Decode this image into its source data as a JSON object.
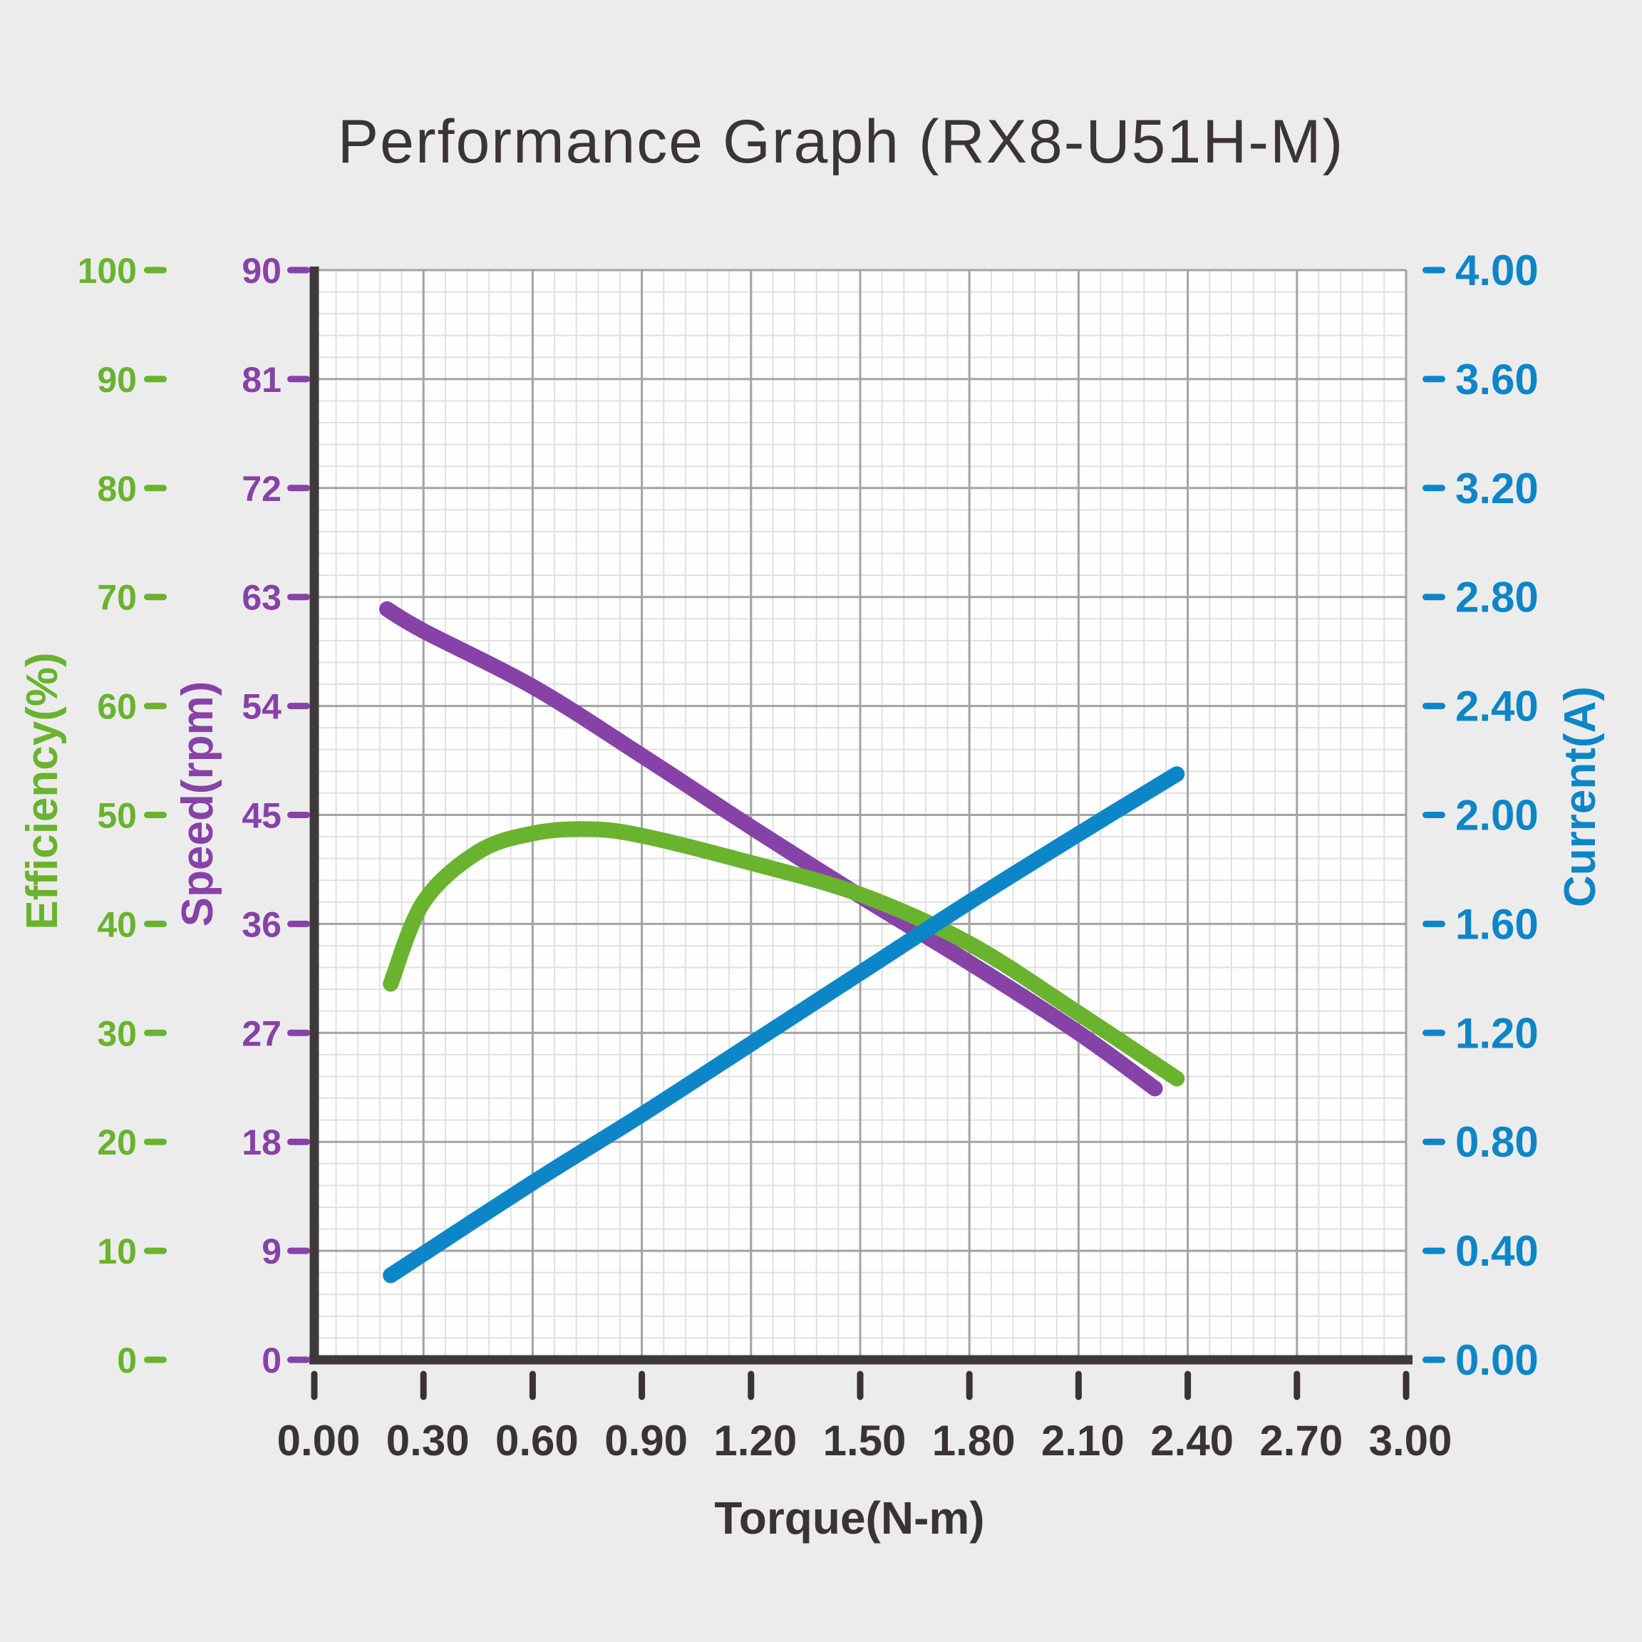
{
  "title": "Performance Graph (RX8-U51H-M)",
  "colors": {
    "background": "#edecec",
    "plot_background": "#fefefe",
    "grid_major": "#a3a3a3",
    "grid_minor": "#e0e0e0",
    "axis_spine": "#3f393b",
    "text_dark": "#3a3335",
    "efficiency_green": "#69b32e",
    "speed_purple": "#8642a7",
    "current_blue": "#0d86c8"
  },
  "axes": {
    "x": {
      "title": "Torque(N-m)",
      "ticks": [
        "0.00",
        "0.30",
        "0.60",
        "0.90",
        "1.20",
        "1.50",
        "1.80",
        "2.10",
        "2.40",
        "2.70",
        "3.00"
      ]
    },
    "efficiency": {
      "title": "Efficiency(%)",
      "ticks": [
        "100",
        "90",
        "80",
        "70",
        "60",
        "50",
        "40",
        "30",
        "20",
        "10",
        "0"
      ]
    },
    "speed": {
      "title": "Speed(rpm)",
      "ticks": [
        "90",
        "81",
        "72",
        "63",
        "54",
        "45",
        "36",
        "27",
        "18",
        "9",
        "0"
      ]
    },
    "current": {
      "title": "Current(A)",
      "ticks": [
        "4.00",
        "3.60",
        "3.20",
        "2.80",
        "2.40",
        "2.00",
        "1.60",
        "1.20",
        "0.80",
        "0.40",
        "0.00"
      ]
    }
  },
  "chart_data": {
    "type": "line",
    "title": "Performance Graph (RX8-U51H-M)",
    "xlabel": "Torque(N-m)",
    "x_range": [
      0.0,
      3.0
    ],
    "x_tick_step": 0.3,
    "grid": true,
    "minor_divisions_per_major": 5,
    "legend_position": "none",
    "series": [
      {
        "name": "Speed",
        "unit": "rpm",
        "axis": "left-outer",
        "color": "#8642a7",
        "ylim": [
          0,
          90
        ],
        "tick_step": 9,
        "points": [
          [
            0.2,
            62.0
          ],
          [
            0.3,
            60.2
          ],
          [
            0.6,
            55.6
          ],
          [
            0.9,
            49.9
          ],
          [
            1.2,
            44.0
          ],
          [
            1.5,
            38.3
          ],
          [
            1.8,
            32.8
          ],
          [
            2.1,
            27.0
          ],
          [
            2.31,
            22.4
          ]
        ]
      },
      {
        "name": "Efficiency",
        "unit": "%",
        "axis": "left-inner",
        "color": "#69b32e",
        "ylim": [
          0,
          100
        ],
        "tick_step": 10,
        "points": [
          [
            0.21,
            34.5
          ],
          [
            0.3,
            42.0
          ],
          [
            0.45,
            46.6
          ],
          [
            0.6,
            48.3
          ],
          [
            0.75,
            48.7
          ],
          [
            0.9,
            48.1
          ],
          [
            1.2,
            45.6
          ],
          [
            1.5,
            42.7
          ],
          [
            1.8,
            38.2
          ],
          [
            2.1,
            31.8
          ],
          [
            2.37,
            25.8
          ]
        ]
      },
      {
        "name": "Current",
        "unit": "A",
        "axis": "right",
        "color": "#0d86c8",
        "ylim": [
          0.0,
          4.0
        ],
        "tick_step": 0.4,
        "points": [
          [
            0.21,
            0.31
          ],
          [
            0.6,
            0.65
          ],
          [
            0.9,
            0.9
          ],
          [
            1.2,
            1.16
          ],
          [
            1.5,
            1.42
          ],
          [
            1.8,
            1.68
          ],
          [
            2.1,
            1.93
          ],
          [
            2.37,
            2.15
          ]
        ]
      }
    ]
  }
}
